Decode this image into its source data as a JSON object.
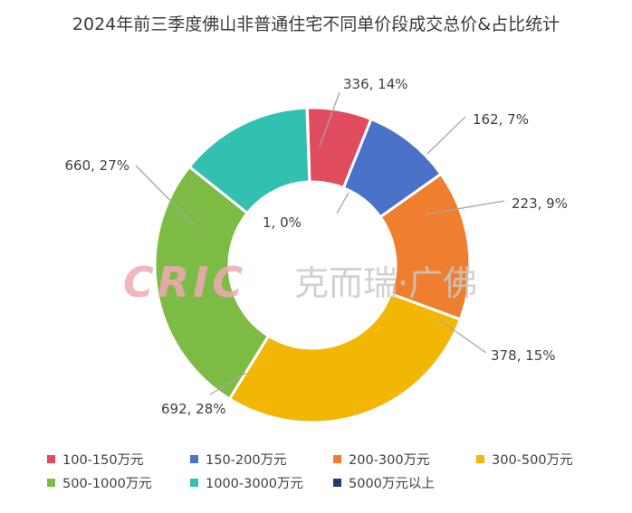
{
  "chart_data": {
    "type": "pie",
    "variant": "doughnut",
    "title": "2024年前三季度佛山非普通住宅不同单价段成交总价&占比统计",
    "categories": [
      "100-150万元",
      "150-200万元",
      "200-300万元",
      "300-500万元",
      "500-1000万元",
      "1000-3000万元",
      "5000万元以上"
    ],
    "values": [
      162,
      223,
      378,
      692,
      660,
      336,
      1
    ],
    "data_labels": [
      "162, 7%",
      "223, 9%",
      "378, 15%",
      "692, 28%",
      "660, 27%",
      "336, 14%",
      "1, 0%"
    ],
    "colors": [
      "#e04b5e",
      "#4a72c8",
      "#ef7f2e",
      "#f2b705",
      "#7cbc44",
      "#32c0b0",
      "#243a6b"
    ],
    "legend_position": "bottom"
  },
  "watermark": {
    "logo_text": "CRIC",
    "text": "克而瑞·广佛"
  }
}
